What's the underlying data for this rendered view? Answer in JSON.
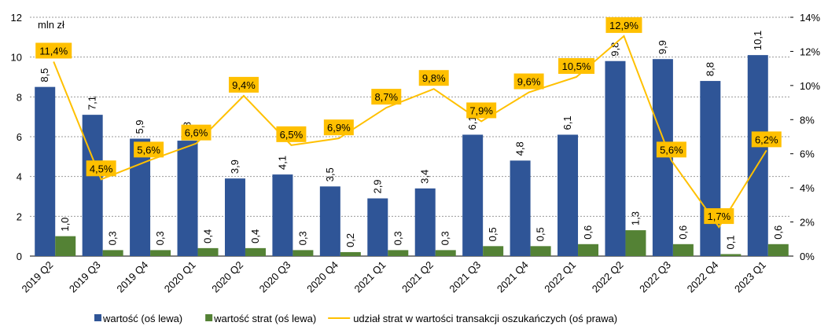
{
  "chart_data": {
    "type": "bar",
    "annotation": "mln zł",
    "categories": [
      "2019 Q2",
      "2019 Q3",
      "2019 Q4",
      "2020 Q1",
      "2020 Q2",
      "2020 Q3",
      "2020 Q4",
      "2021 Q1",
      "2021 Q2",
      "2021 Q3",
      "2021 Q4",
      "2022 Q1",
      "2022 Q2",
      "2022 Q3",
      "2022 Q4",
      "2023 Q1"
    ],
    "series": [
      {
        "name": "wartość (oś lewa)",
        "type": "bar",
        "color": "#2f5597",
        "values": [
          8.5,
          7.1,
          5.9,
          5.8,
          3.9,
          4.1,
          3.5,
          2.9,
          3.4,
          6.1,
          4.8,
          6.1,
          9.8,
          9.9,
          8.8,
          10.1
        ],
        "value_labels": [
          "8,5",
          "7,1",
          "5,9",
          "5,8",
          "3,9",
          "4,1",
          "3,5",
          "2,9",
          "3,4",
          "6,1",
          "4,8",
          "6,1",
          "9,8",
          "9,9",
          "8,8",
          "10,1"
        ]
      },
      {
        "name": "wartość strat (oś lewa)",
        "type": "bar",
        "color": "#548235",
        "values": [
          1.0,
          0.3,
          0.3,
          0.4,
          0.4,
          0.3,
          0.2,
          0.3,
          0.3,
          0.5,
          0.5,
          0.6,
          1.3,
          0.6,
          0.1,
          0.6
        ],
        "value_labels": [
          "1,0",
          "0,3",
          "0,3",
          "0,4",
          "0,4",
          "0,3",
          "0,2",
          "0,3",
          "0,3",
          "0,5",
          "0,5",
          "0,6",
          "1,3",
          "0,6",
          "0,1",
          "0,6"
        ]
      },
      {
        "name": "udział strat w wartości transakcji oszukańczych (oś prawa)",
        "type": "line",
        "axis": "y2",
        "color": "#ffc000",
        "values": [
          11.4,
          4.5,
          5.6,
          6.6,
          9.4,
          6.5,
          6.9,
          8.7,
          9.8,
          7.9,
          9.6,
          10.5,
          12.9,
          5.6,
          1.7,
          6.2
        ],
        "value_labels": [
          "11,4%",
          "4,5%",
          "5,6%",
          "6,6%",
          "9,4%",
          "6,5%",
          "6,9%",
          "8,7%",
          "9,8%",
          "7,9%",
          "9,6%",
          "10,5%",
          "12,9%",
          "5,6%",
          "1,7%",
          "6,2%"
        ]
      }
    ],
    "ylim": [
      0,
      12
    ],
    "yticks": [
      0,
      2,
      4,
      6,
      8,
      10,
      12
    ],
    "y2lim": [
      0,
      14
    ],
    "y2ticks": [
      {
        "value": 0,
        "label": "0%"
      },
      {
        "value": 2,
        "label": "2%"
      },
      {
        "value": 4,
        "label": "4%"
      },
      {
        "value": 6,
        "label": "6%"
      },
      {
        "value": 8,
        "label": "8%"
      },
      {
        "value": 10,
        "label": "10%"
      },
      {
        "value": 12,
        "label": "12%"
      },
      {
        "value": 14,
        "label": "14%"
      }
    ],
    "grid": true,
    "legend": "bottom"
  }
}
